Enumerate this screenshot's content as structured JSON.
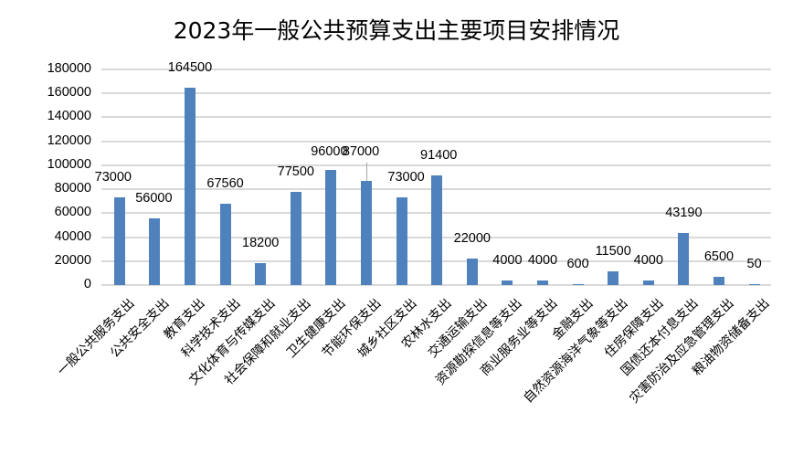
{
  "chart_data": {
    "type": "bar",
    "title": "2023年一般公共预算支出主要项目安排情况",
    "xlabel": "",
    "ylabel": "",
    "ylim": [
      0,
      180000
    ],
    "yticks": [
      "0",
      "20000",
      "40000",
      "60000",
      "80000",
      "100000",
      "120000",
      "140000",
      "160000",
      "180000"
    ],
    "grid": true,
    "legend": "none",
    "bar_color": "#4f81bd",
    "categories": [
      "一般公共服务支出",
      "公共安全支出",
      "教育支出",
      "科学技术支出",
      "文化体育与传媒支出",
      "社会保障和就业支出",
      "卫生健康支出",
      "节能环保支出",
      "城乡社区支出",
      "农林水支出",
      "交通运输支出",
      "资源勘探信息等支出",
      "商业服务业等支出",
      "金融支出",
      "自然资源海洋气象等支出",
      "住房保障支出",
      "国债还本付息支出",
      "灾害防治及应急管理支出",
      "粮油物资储备支出"
    ],
    "values": [
      73000,
      56000,
      164500,
      67560,
      18200,
      77500,
      96000,
      87000,
      73000,
      91400,
      22000,
      4000,
      4000,
      600,
      11500,
      4000,
      43190,
      6500,
      50
    ],
    "data_labels": [
      "73000",
      "56000",
      "164500",
      "67560",
      "18200",
      "77500",
      "96000",
      "87000",
      "73000",
      "91400",
      "22000",
      "4000",
      "4000",
      "600",
      "11500",
      "4000",
      "43190",
      "6500",
      "50"
    ]
  }
}
